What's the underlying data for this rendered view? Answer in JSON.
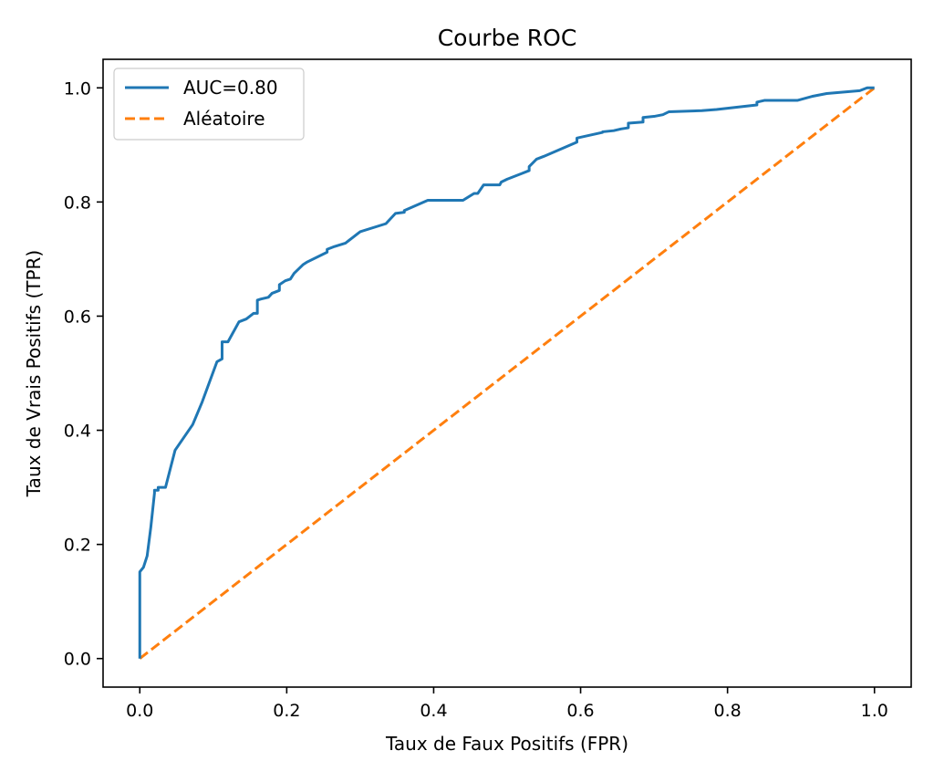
{
  "chart_data": {
    "type": "line",
    "title": "Courbe ROC",
    "xlabel": "Taux de Faux Positifs (FPR)",
    "ylabel": "Taux de Vrais Positifs (TPR)",
    "xlim": [
      -0.05,
      1.05
    ],
    "ylim": [
      -0.05,
      1.05
    ],
    "xticks": [
      0.0,
      0.2,
      0.4,
      0.6,
      0.8,
      1.0
    ],
    "xtick_labels": [
      "0.0",
      "0.2",
      "0.4",
      "0.6",
      "0.8",
      "1.0"
    ],
    "yticks": [
      0.0,
      0.2,
      0.4,
      0.6,
      0.8,
      1.0
    ],
    "ytick_labels": [
      "0.0",
      "0.2",
      "0.4",
      "0.6",
      "0.8",
      "1.0"
    ],
    "grid": false,
    "legend_position": "upper-left",
    "series": [
      {
        "name": "AUC=0.80",
        "color": "#1f77b4",
        "style": "solid",
        "x": [
          0.0,
          0.0,
          0.0,
          0.005,
          0.01,
          0.015,
          0.02,
          0.02,
          0.025,
          0.025,
          0.035,
          0.048,
          0.072,
          0.085,
          0.095,
          0.105,
          0.112,
          0.112,
          0.12,
          0.135,
          0.145,
          0.15,
          0.155,
          0.16,
          0.16,
          0.165,
          0.175,
          0.18,
          0.19,
          0.19,
          0.198,
          0.205,
          0.21,
          0.222,
          0.228,
          0.255,
          0.255,
          0.265,
          0.275,
          0.28,
          0.29,
          0.3,
          0.335,
          0.348,
          0.36,
          0.36,
          0.392,
          0.44,
          0.455,
          0.46,
          0.468,
          0.49,
          0.492,
          0.5,
          0.52,
          0.53,
          0.53,
          0.54,
          0.55,
          0.595,
          0.595,
          0.63,
          0.63,
          0.645,
          0.655,
          0.665,
          0.665,
          0.685,
          0.685,
          0.7,
          0.712,
          0.72,
          0.765,
          0.785,
          0.84,
          0.84,
          0.85,
          0.895,
          0.915,
          0.935,
          0.98,
          0.99,
          1.0
        ],
        "y": [
          0.0,
          0.075,
          0.152,
          0.16,
          0.18,
          0.23,
          0.29,
          0.295,
          0.295,
          0.3,
          0.3,
          0.365,
          0.41,
          0.45,
          0.485,
          0.52,
          0.525,
          0.555,
          0.555,
          0.59,
          0.595,
          0.6,
          0.605,
          0.605,
          0.628,
          0.63,
          0.633,
          0.64,
          0.645,
          0.655,
          0.662,
          0.665,
          0.675,
          0.69,
          0.695,
          0.712,
          0.717,
          0.722,
          0.726,
          0.728,
          0.738,
          0.748,
          0.762,
          0.78,
          0.782,
          0.785,
          0.803,
          0.803,
          0.815,
          0.815,
          0.83,
          0.83,
          0.835,
          0.84,
          0.85,
          0.855,
          0.862,
          0.875,
          0.88,
          0.905,
          0.912,
          0.922,
          0.923,
          0.925,
          0.928,
          0.93,
          0.938,
          0.94,
          0.948,
          0.95,
          0.953,
          0.958,
          0.96,
          0.962,
          0.97,
          0.975,
          0.978,
          0.978,
          0.985,
          0.99,
          0.995,
          1.0,
          1.0
        ]
      },
      {
        "name": "Aléatoire",
        "color": "#ff7f0e",
        "style": "dashed",
        "x": [
          0.0,
          1.0
        ],
        "y": [
          0.0,
          1.0
        ]
      }
    ]
  }
}
